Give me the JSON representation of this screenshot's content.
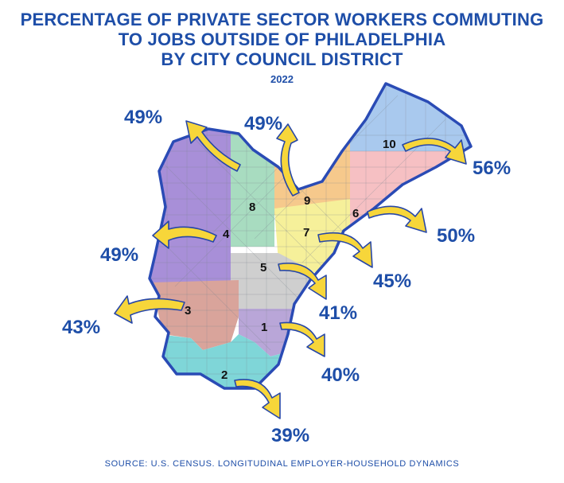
{
  "title": {
    "line1": "PERCENTAGE OF PRIVATE SECTOR WORKERS COMMUTING",
    "line2": "TO JOBS OUTSIDE OF PHILADELPHIA",
    "line3": "BY CITY COUNCIL DISTRICT"
  },
  "year": "2022",
  "source": "SOURCE: U.S. CENSUS. LONGITUDINAL EMPLOYER-HOUSEHOLD DYNAMICS",
  "colors": {
    "title": "#1e4ea8",
    "outline": "#2a4bb5",
    "arrow_fill": "#f7d63a",
    "arrow_stroke": "#2747a8"
  },
  "districts": [
    {
      "number": "1",
      "percent": "40%",
      "color": "#b9a6d8"
    },
    {
      "number": "2",
      "percent": "39%",
      "color": "#7fd6d8"
    },
    {
      "number": "3",
      "percent": "43%",
      "color": "#d9a49b"
    },
    {
      "number": "4",
      "percent": "49%",
      "color": "#a88fd8"
    },
    {
      "number": "5",
      "percent": "41%",
      "color": "#cfcfcf"
    },
    {
      "number": "6",
      "percent": "50%",
      "color": "#f6c0c3"
    },
    {
      "number": "7",
      "percent": "45%",
      "color": "#f6f09a"
    },
    {
      "number": "8",
      "percent": "49%",
      "color": "#a8dcc0"
    },
    {
      "number": "9",
      "percent": "49%",
      "color": "#f6c98c"
    },
    {
      "number": "10",
      "percent": "56%",
      "color": "#a9c9ee"
    }
  ]
}
